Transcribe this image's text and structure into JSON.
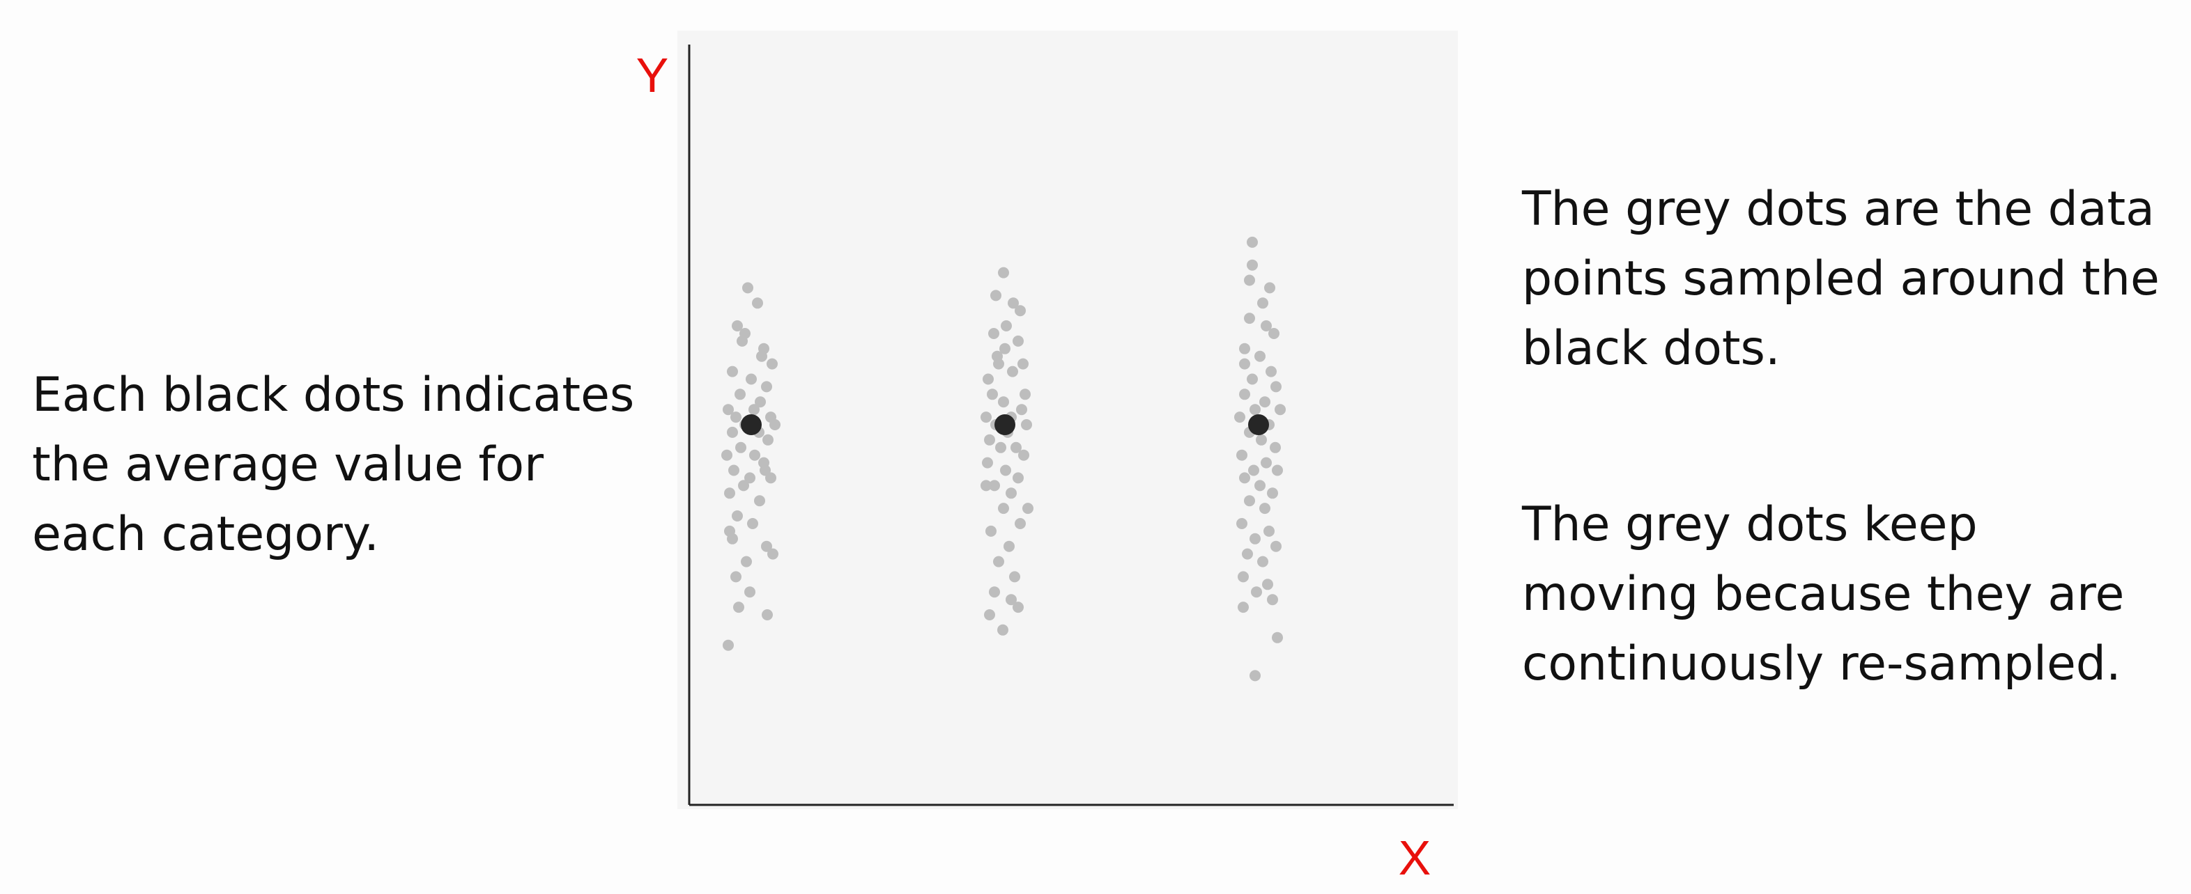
{
  "captions": {
    "left": [
      "Each black dots indicates",
      "the average value for",
      "each category."
    ],
    "right_top": [
      "The grey dots are the data",
      "points sampled around the",
      "black dots."
    ],
    "right_bottom": [
      "The grey dots keep",
      "moving because they are",
      "continuously re-sampled."
    ]
  },
  "colors": {
    "axis_label": "#e8100c",
    "mean_dot": "#262626",
    "sample_dot": "#bdbdbd",
    "plot_background": "#f5f5f5",
    "axis_line": "#222222"
  },
  "chart_data": {
    "type": "scatter",
    "title": "",
    "xlabel": "X",
    "ylabel": "Y",
    "x_ticks_shown": false,
    "y_ticks_shown": false,
    "grid": false,
    "legend": "none",
    "ylim": [
      0,
      100
    ],
    "categories": [
      "1",
      "2",
      "3"
    ],
    "means": [
      50,
      50,
      50
    ],
    "series": [
      {
        "kind": "samples",
        "points": [
          {
            "c": 0,
            "j": -0.2,
            "y": 63
          },
          {
            "c": 0,
            "j": -0.05,
            "y": 68
          },
          {
            "c": 0,
            "j": 0.09,
            "y": 66
          },
          {
            "c": 0,
            "j": -0.13,
            "y": 61
          },
          {
            "c": 0,
            "j": 0.18,
            "y": 60
          },
          {
            "c": 0,
            "j": 0.3,
            "y": 58
          },
          {
            "c": 0,
            "j": -0.27,
            "y": 57
          },
          {
            "c": 0,
            "j": 0.0,
            "y": 56
          },
          {
            "c": 0,
            "j": 0.22,
            "y": 55
          },
          {
            "c": 0,
            "j": -0.16,
            "y": 54
          },
          {
            "c": 0,
            "j": 0.13,
            "y": 53
          },
          {
            "c": 0,
            "j": -0.33,
            "y": 52
          },
          {
            "c": 0,
            "j": 0.04,
            "y": 52
          },
          {
            "c": 0,
            "j": 0.28,
            "y": 51
          },
          {
            "c": 0,
            "j": -0.22,
            "y": 51
          },
          {
            "c": 0,
            "j": -0.09,
            "y": 50
          },
          {
            "c": 0,
            "j": 0.34,
            "y": 50
          },
          {
            "c": 0,
            "j": -0.27,
            "y": 49
          },
          {
            "c": 0,
            "j": 0.11,
            "y": 49
          },
          {
            "c": 0,
            "j": 0.24,
            "y": 48
          },
          {
            "c": 0,
            "j": -0.15,
            "y": 47
          },
          {
            "c": 0,
            "j": -0.35,
            "y": 46
          },
          {
            "c": 0,
            "j": 0.05,
            "y": 46
          },
          {
            "c": 0,
            "j": 0.18,
            "y": 45
          },
          {
            "c": 0,
            "j": -0.25,
            "y": 44
          },
          {
            "c": 0,
            "j": -0.02,
            "y": 43
          },
          {
            "c": 0,
            "j": 0.28,
            "y": 43
          },
          {
            "c": 0,
            "j": -0.11,
            "y": 42
          },
          {
            "c": 0,
            "j": -0.31,
            "y": 41
          },
          {
            "c": 0,
            "j": 0.12,
            "y": 40
          },
          {
            "c": 0,
            "j": -0.2,
            "y": 38
          },
          {
            "c": 0,
            "j": 0.02,
            "y": 37
          },
          {
            "c": 0,
            "j": -0.27,
            "y": 35
          },
          {
            "c": 0,
            "j": 0.22,
            "y": 34
          },
          {
            "c": 0,
            "j": -0.07,
            "y": 32
          },
          {
            "c": 0,
            "j": -0.22,
            "y": 30
          },
          {
            "c": 0,
            "j": -0.02,
            "y": 28
          },
          {
            "c": 0,
            "j": 0.31,
            "y": 33
          },
          {
            "c": 0,
            "j": 0.15,
            "y": 59
          },
          {
            "c": 0,
            "j": -0.09,
            "y": 62
          },
          {
            "c": 0,
            "j": 0.2,
            "y": 44
          },
          {
            "c": 0,
            "j": -0.31,
            "y": 36
          },
          {
            "c": 0,
            "j": -0.33,
            "y": 21
          },
          {
            "c": 0,
            "j": -0.18,
            "y": 26
          },
          {
            "c": 0,
            "j": 0.23,
            "y": 25
          },
          {
            "c": 1,
            "j": -0.13,
            "y": 67
          },
          {
            "c": 1,
            "j": -0.02,
            "y": 70
          },
          {
            "c": 1,
            "j": 0.12,
            "y": 66
          },
          {
            "c": 1,
            "j": 0.22,
            "y": 65
          },
          {
            "c": 1,
            "j": -0.16,
            "y": 62
          },
          {
            "c": 1,
            "j": 0.02,
            "y": 63
          },
          {
            "c": 1,
            "j": 0.19,
            "y": 61
          },
          {
            "c": 1,
            "j": -0.09,
            "y": 58
          },
          {
            "c": 1,
            "j": -0.24,
            "y": 56
          },
          {
            "c": 1,
            "j": 0.11,
            "y": 57
          },
          {
            "c": 1,
            "j": 0.29,
            "y": 54
          },
          {
            "c": 1,
            "j": -0.18,
            "y": 54
          },
          {
            "c": 1,
            "j": -0.02,
            "y": 53
          },
          {
            "c": 1,
            "j": 0.24,
            "y": 52
          },
          {
            "c": 1,
            "j": -0.27,
            "y": 51
          },
          {
            "c": 1,
            "j": 0.09,
            "y": 51
          },
          {
            "c": 1,
            "j": -0.13,
            "y": 50
          },
          {
            "c": 1,
            "j": 0.31,
            "y": 50
          },
          {
            "c": 1,
            "j": 0.04,
            "y": 49
          },
          {
            "c": 1,
            "j": -0.22,
            "y": 48
          },
          {
            "c": 1,
            "j": 0.16,
            "y": 47
          },
          {
            "c": 1,
            "j": -0.06,
            "y": 47
          },
          {
            "c": 1,
            "j": 0.27,
            "y": 46
          },
          {
            "c": 1,
            "j": -0.25,
            "y": 45
          },
          {
            "c": 1,
            "j": 0.01,
            "y": 44
          },
          {
            "c": 1,
            "j": 0.19,
            "y": 43
          },
          {
            "c": 1,
            "j": -0.15,
            "y": 42
          },
          {
            "c": 1,
            "j": 0.09,
            "y": 41
          },
          {
            "c": 1,
            "j": -0.02,
            "y": 39
          },
          {
            "c": 1,
            "j": 0.22,
            "y": 37
          },
          {
            "c": 1,
            "j": -0.2,
            "y": 36
          },
          {
            "c": 1,
            "j": 0.06,
            "y": 34
          },
          {
            "c": 1,
            "j": -0.09,
            "y": 32
          },
          {
            "c": 1,
            "j": 0.14,
            "y": 30
          },
          {
            "c": 1,
            "j": -0.15,
            "y": 28
          },
          {
            "c": 1,
            "j": 0.09,
            "y": 27
          },
          {
            "c": 1,
            "j": -0.22,
            "y": 25
          },
          {
            "c": 1,
            "j": -0.03,
            "y": 23
          },
          {
            "c": 1,
            "j": 0.19,
            "y": 26
          },
          {
            "c": 1,
            "j": 0.26,
            "y": 58
          },
          {
            "c": 1,
            "j": -0.27,
            "y": 42
          },
          {
            "c": 1,
            "j": 0.33,
            "y": 39
          },
          {
            "c": 1,
            "j": -0.11,
            "y": 59
          },
          {
            "c": 1,
            "j": 0.0,
            "y": 60
          },
          {
            "c": 2,
            "j": -0.09,
            "y": 74
          },
          {
            "c": 2,
            "j": -0.09,
            "y": 71
          },
          {
            "c": 2,
            "j": -0.13,
            "y": 69
          },
          {
            "c": 2,
            "j": 0.06,
            "y": 66
          },
          {
            "c": 2,
            "j": 0.16,
            "y": 68
          },
          {
            "c": 2,
            "j": -0.13,
            "y": 64
          },
          {
            "c": 2,
            "j": 0.11,
            "y": 63
          },
          {
            "c": 2,
            "j": 0.22,
            "y": 62
          },
          {
            "c": 2,
            "j": -0.2,
            "y": 60
          },
          {
            "c": 2,
            "j": 0.02,
            "y": 59
          },
          {
            "c": 2,
            "j": 0.18,
            "y": 57
          },
          {
            "c": 2,
            "j": -0.09,
            "y": 56
          },
          {
            "c": 2,
            "j": 0.25,
            "y": 55
          },
          {
            "c": 2,
            "j": -0.2,
            "y": 54
          },
          {
            "c": 2,
            "j": 0.09,
            "y": 53
          },
          {
            "c": 2,
            "j": -0.05,
            "y": 52
          },
          {
            "c": 2,
            "j": 0.31,
            "y": 52
          },
          {
            "c": 2,
            "j": -0.27,
            "y": 51
          },
          {
            "c": 2,
            "j": 0.15,
            "y": 50
          },
          {
            "c": 2,
            "j": -0.13,
            "y": 49
          },
          {
            "c": 2,
            "j": 0.04,
            "y": 48
          },
          {
            "c": 2,
            "j": 0.24,
            "y": 47
          },
          {
            "c": 2,
            "j": -0.24,
            "y": 46
          },
          {
            "c": 2,
            "j": 0.11,
            "y": 45
          },
          {
            "c": 2,
            "j": -0.07,
            "y": 44
          },
          {
            "c": 2,
            "j": 0.27,
            "y": 44
          },
          {
            "c": 2,
            "j": -0.2,
            "y": 43
          },
          {
            "c": 2,
            "j": 0.02,
            "y": 42
          },
          {
            "c": 2,
            "j": 0.2,
            "y": 41
          },
          {
            "c": 2,
            "j": -0.13,
            "y": 40
          },
          {
            "c": 2,
            "j": 0.09,
            "y": 39
          },
          {
            "c": 2,
            "j": -0.24,
            "y": 37
          },
          {
            "c": 2,
            "j": 0.15,
            "y": 36
          },
          {
            "c": 2,
            "j": -0.05,
            "y": 35
          },
          {
            "c": 2,
            "j": 0.25,
            "y": 34
          },
          {
            "c": 2,
            "j": -0.16,
            "y": 33
          },
          {
            "c": 2,
            "j": 0.06,
            "y": 32
          },
          {
            "c": 2,
            "j": -0.22,
            "y": 30
          },
          {
            "c": 2,
            "j": 0.13,
            "y": 29
          },
          {
            "c": 2,
            "j": -0.03,
            "y": 28
          },
          {
            "c": 2,
            "j": 0.2,
            "y": 27
          },
          {
            "c": 2,
            "j": -0.22,
            "y": 26
          },
          {
            "c": 2,
            "j": 0.27,
            "y": 22
          },
          {
            "c": 2,
            "j": -0.05,
            "y": 17
          },
          {
            "c": 2,
            "j": -0.2,
            "y": 58
          }
        ]
      },
      {
        "kind": "means",
        "points": [
          {
            "c": 0,
            "y": 50
          },
          {
            "c": 1,
            "y": 50
          },
          {
            "c": 2,
            "y": 50
          }
        ]
      }
    ]
  }
}
